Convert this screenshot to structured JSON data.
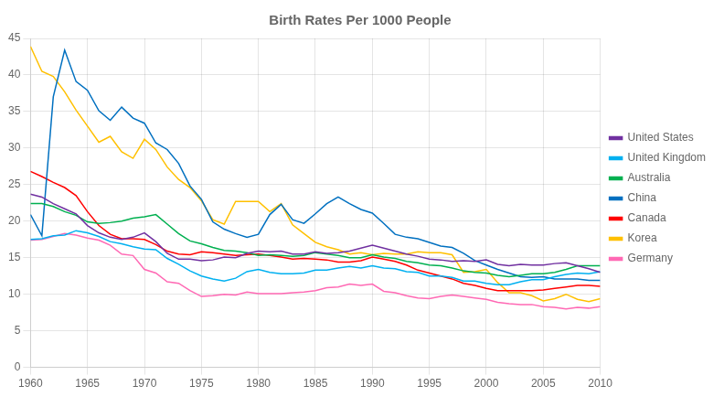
{
  "chart_data": {
    "type": "line",
    "title": "Birth Rates Per 1000 People",
    "x": [
      1960,
      1961,
      1962,
      1963,
      1964,
      1965,
      1966,
      1967,
      1968,
      1969,
      1970,
      1971,
      1972,
      1973,
      1974,
      1975,
      1976,
      1977,
      1978,
      1979,
      1980,
      1981,
      1982,
      1983,
      1984,
      1985,
      1986,
      1987,
      1988,
      1989,
      1990,
      1991,
      1992,
      1993,
      1994,
      1995,
      1996,
      1997,
      1998,
      1999,
      2000,
      2001,
      2002,
      2003,
      2004,
      2005,
      2006,
      2007,
      2008,
      2009,
      2010
    ],
    "series": [
      {
        "name": "United States",
        "color": "#7030A0",
        "values": [
          23.7,
          23.3,
          22.4,
          21.7,
          21.0,
          19.4,
          18.4,
          17.8,
          17.5,
          17.8,
          18.4,
          17.2,
          15.6,
          14.8,
          14.8,
          14.6,
          14.7,
          15.1,
          15.0,
          15.6,
          15.9,
          15.8,
          15.9,
          15.5,
          15.5,
          15.8,
          15.6,
          15.7,
          15.9,
          16.3,
          16.7,
          16.3,
          15.9,
          15.5,
          15.2,
          14.8,
          14.7,
          14.5,
          14.6,
          14.5,
          14.7,
          14.1,
          13.9,
          14.1,
          14.0,
          14.0,
          14.2,
          14.3,
          13.9,
          13.5,
          13.0
        ]
      },
      {
        "name": "United Kingdom",
        "color": "#00B0F0",
        "values": [
          17.5,
          17.6,
          18.0,
          18.1,
          18.7,
          18.4,
          17.9,
          17.2,
          16.9,
          16.5,
          16.2,
          16.1,
          14.9,
          14.1,
          13.2,
          12.5,
          12.1,
          11.8,
          12.2,
          13.1,
          13.4,
          13.0,
          12.8,
          12.8,
          12.9,
          13.3,
          13.3,
          13.6,
          13.8,
          13.6,
          13.9,
          13.6,
          13.5,
          13.1,
          13.0,
          12.5,
          12.5,
          12.3,
          11.8,
          11.8,
          11.5,
          11.3,
          11.3,
          11.7,
          12.0,
          12.0,
          12.4,
          12.7,
          12.9,
          12.8,
          13.1
        ]
      },
      {
        "name": "Australia",
        "color": "#00B050",
        "values": [
          22.4,
          22.4,
          22.0,
          21.3,
          20.8,
          19.9,
          19.7,
          19.8,
          20.0,
          20.4,
          20.6,
          20.9,
          19.6,
          18.3,
          17.3,
          16.9,
          16.4,
          16.0,
          15.9,
          15.7,
          15.3,
          15.4,
          15.3,
          15.2,
          15.3,
          15.7,
          15.5,
          15.3,
          15.0,
          15.0,
          15.4,
          15.1,
          14.9,
          14.5,
          14.3,
          14.0,
          13.9,
          13.6,
          13.2,
          13.0,
          12.9,
          12.6,
          12.4,
          12.6,
          12.8,
          12.8,
          13.0,
          13.4,
          13.9,
          13.9,
          13.9
        ]
      },
      {
        "name": "China",
        "color": "#0070C0",
        "values": [
          20.9,
          18.0,
          37.0,
          43.4,
          39.1,
          37.9,
          35.1,
          33.8,
          35.6,
          34.1,
          33.4,
          30.7,
          29.8,
          27.9,
          24.8,
          23.0,
          19.9,
          18.9,
          18.3,
          17.8,
          18.2,
          20.9,
          22.3,
          20.2,
          19.7,
          21.0,
          22.4,
          23.3,
          22.4,
          21.6,
          21.1,
          19.7,
          18.2,
          17.8,
          17.6,
          17.1,
          16.6,
          16.4,
          15.6,
          14.6,
          14.0,
          13.4,
          12.9,
          12.4,
          12.3,
          12.4,
          12.1,
          12.1,
          12.1,
          11.9,
          11.9
        ]
      },
      {
        "name": "Canada",
        "color": "#FF0000",
        "values": [
          26.8,
          26.1,
          25.3,
          24.6,
          23.5,
          21.3,
          19.4,
          18.2,
          17.6,
          17.6,
          17.5,
          16.8,
          15.9,
          15.5,
          15.4,
          15.8,
          15.7,
          15.5,
          15.3,
          15.4,
          15.5,
          15.3,
          15.1,
          14.8,
          14.9,
          14.8,
          14.7,
          14.4,
          14.4,
          14.6,
          15.1,
          14.8,
          14.5,
          14.0,
          13.3,
          12.9,
          12.5,
          12.1,
          11.5,
          11.2,
          10.8,
          10.5,
          10.5,
          10.5,
          10.5,
          10.6,
          10.8,
          11.0,
          11.2,
          11.2,
          11.1
        ]
      },
      {
        "name": "Korea",
        "color": "#FFC000",
        "values": [
          43.9,
          40.5,
          39.8,
          37.7,
          35.2,
          33.0,
          30.8,
          31.6,
          29.5,
          28.6,
          31.2,
          29.8,
          27.4,
          25.7,
          24.6,
          22.8,
          20.2,
          19.6,
          22.7,
          22.7,
          22.7,
          21.3,
          22.4,
          19.5,
          18.3,
          17.1,
          16.5,
          16.1,
          15.5,
          15.7,
          15.4,
          15.6,
          15.5,
          15.5,
          15.8,
          15.7,
          15.7,
          15.4,
          13.0,
          13.1,
          13.4,
          11.6,
          10.2,
          10.2,
          9.8,
          9.1,
          9.4,
          10.0,
          9.3,
          9.0,
          9.4
        ]
      },
      {
        "name": "Germany",
        "color": "#FF69B4",
        "values": [
          17.4,
          17.5,
          17.9,
          18.3,
          18.1,
          17.7,
          17.4,
          16.7,
          15.5,
          15.3,
          13.4,
          12.9,
          11.7,
          11.5,
          10.5,
          9.7,
          9.8,
          10.0,
          9.9,
          10.3,
          10.1,
          10.1,
          10.1,
          10.2,
          10.3,
          10.5,
          10.9,
          11.0,
          11.4,
          11.2,
          11.4,
          10.4,
          10.2,
          9.8,
          9.5,
          9.4,
          9.7,
          9.9,
          9.7,
          9.5,
          9.3,
          8.9,
          8.7,
          8.6,
          8.6,
          8.3,
          8.2,
          8.0,
          8.2,
          8.1,
          8.3
        ]
      }
    ],
    "xlim": [
      1960,
      2010
    ],
    "ylim": [
      0,
      45
    ],
    "xticks": [
      1960,
      1965,
      1970,
      1975,
      1980,
      1985,
      1990,
      1995,
      2000,
      2005,
      2010
    ],
    "yticks": [
      0,
      5,
      10,
      15,
      20,
      25,
      30,
      35,
      40,
      45
    ],
    "grid": true,
    "legend": "right"
  }
}
